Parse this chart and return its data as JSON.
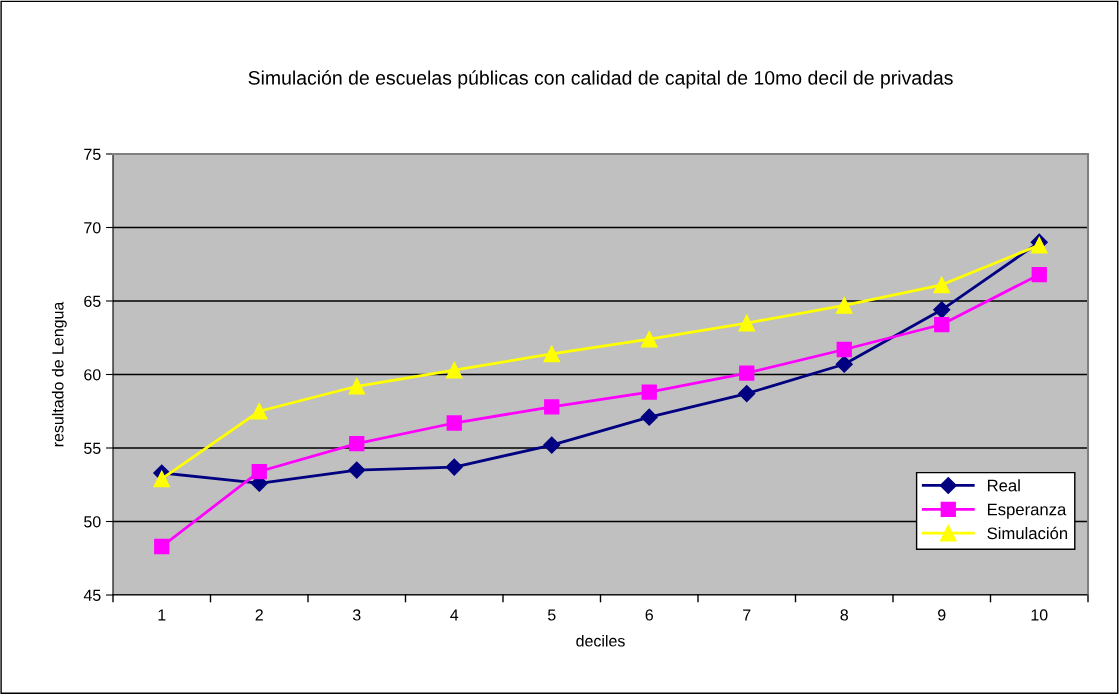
{
  "chart_data": {
    "type": "line",
    "title": "Simulación de escuelas públicas con calidad de capital de 10mo decil de privadas",
    "xlabel": "deciles",
    "ylabel": "resultado de Lengua",
    "categories": [
      "1",
      "2",
      "3",
      "4",
      "5",
      "6",
      "7",
      "8",
      "9",
      "10"
    ],
    "series": [
      {
        "name": "Real",
        "color": "#000080",
        "marker": "diamond",
        "values": [
          53.3,
          52.6,
          53.5,
          53.7,
          55.2,
          57.1,
          58.7,
          60.7,
          64.4,
          69.0
        ]
      },
      {
        "name": "Esperanza",
        "color": "#ff00ff",
        "marker": "square",
        "values": [
          48.3,
          53.4,
          55.3,
          56.7,
          57.8,
          58.8,
          60.1,
          61.7,
          63.4,
          66.8
        ]
      },
      {
        "name": "Simulación",
        "color": "#ffff00",
        "marker": "triangle",
        "values": [
          52.9,
          57.5,
          59.2,
          60.3,
          61.4,
          62.4,
          63.5,
          64.7,
          66.1,
          68.8
        ]
      }
    ],
    "ylim": [
      45,
      75
    ],
    "yticks": [
      45,
      50,
      55,
      60,
      65,
      70,
      75
    ],
    "grid": "y",
    "legend": "right",
    "line_style": "solid"
  }
}
